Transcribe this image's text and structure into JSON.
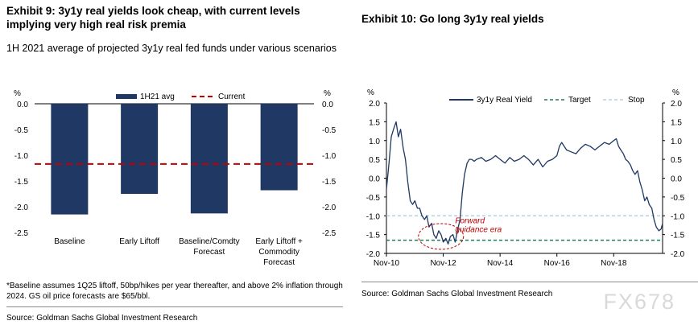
{
  "left": {
    "title": "Exhibit 9: 3y1y real yields look cheap, with current levels implying very high real risk premia",
    "subtitle": "1H 2021 average of projected 3y1y real fed funds under various scenarios",
    "footnote": "*Baseline assumes 1Q25 liftoff, 50bp/hikes per year thereafter, and above 2% inflation through 2024. GS oil price forecasts are $65/bbl.",
    "source": "Source: Goldman Sachs Global Investment Research"
  },
  "right": {
    "title": "Exhibit 10: Go long 3y1y real yields",
    "source": "Source: Goldman Sachs Global Investment Research",
    "annotation": [
      "Forward",
      "guidance era"
    ]
  },
  "watermark": "FX678",
  "colors": {
    "navy": "#1f3864",
    "red": "#c00000",
    "green": "#1e7b58",
    "lightblue": "#b4d2e6"
  },
  "chart_data": [
    {
      "type": "bar",
      "title": "Exhibit 9: 3y1y real yields look cheap, with current levels implying very high real risk premia",
      "categories": [
        "Baseline",
        "Early Liftoff",
        "Baseline/Comdty Forecast",
        "Early Liftoff + Commodity Forecast"
      ],
      "category_lines": [
        [
          "Baseline"
        ],
        [
          "Early Liftoff"
        ],
        [
          "Baseline/Comdty",
          "Forecast"
        ],
        [
          "Early Liftoff +",
          "Commodity",
          "Forecast"
        ]
      ],
      "series": [
        {
          "name": "1H21 avg",
          "values": [
            -2.15,
            -1.75,
            -2.13,
            -1.68
          ]
        }
      ],
      "reference_line": {
        "name": "Current",
        "value": -1.17
      },
      "ylabel_left": "%",
      "ylabel_right": "%",
      "ylim": [
        -2.5,
        0.0
      ],
      "yticks": [
        "0.0",
        "-0.5",
        "-1.0",
        "-1.5",
        "-2.0",
        "-2.5"
      ],
      "legend": "top"
    },
    {
      "type": "line",
      "title": "Exhibit 10: Go long 3y1y real yields",
      "x_ticks": [
        "Nov-10",
        "Nov-12",
        "Nov-14",
        "Nov-16",
        "Nov-18"
      ],
      "x_range": [
        2010.83,
        2020.55
      ],
      "ylabel_left": "%",
      "ylabel_right": "%",
      "ylim": [
        -2.0,
        2.0
      ],
      "yticks": [
        "2.0",
        "1.5",
        "1.0",
        "0.5",
        "0.0",
        "-0.5",
        "-1.0",
        "-1.5",
        "-2.0"
      ],
      "series": [
        {
          "name": "3y1y Real Yield",
          "x": [
            2010.83,
            2010.92,
            2011.0,
            2011.08,
            2011.17,
            2011.25,
            2011.33,
            2011.42,
            2011.5,
            2011.58,
            2011.67,
            2011.75,
            2011.83,
            2011.92,
            2012.0,
            2012.08,
            2012.17,
            2012.25,
            2012.33,
            2012.42,
            2012.5,
            2012.58,
            2012.67,
            2012.75,
            2012.83,
            2012.92,
            2013.0,
            2013.08,
            2013.17,
            2013.25,
            2013.33,
            2013.42,
            2013.5,
            2013.58,
            2013.67,
            2013.75,
            2013.83,
            2013.92,
            2014.0,
            2014.17,
            2014.33,
            2014.5,
            2014.67,
            2014.83,
            2015.0,
            2015.17,
            2015.33,
            2015.5,
            2015.67,
            2015.83,
            2016.0,
            2016.17,
            2016.33,
            2016.5,
            2016.67,
            2016.83,
            2016.92,
            2017.0,
            2017.17,
            2017.33,
            2017.5,
            2017.67,
            2017.83,
            2018.0,
            2018.17,
            2018.33,
            2018.5,
            2018.67,
            2018.83,
            2018.92,
            2019.0,
            2019.08,
            2019.17,
            2019.25,
            2019.33,
            2019.42,
            2019.5,
            2019.58,
            2019.67,
            2019.75,
            2019.83,
            2019.92,
            2020.0,
            2020.08,
            2020.17,
            2020.25,
            2020.33,
            2020.42,
            2020.5,
            2020.55
          ],
          "y": [
            -0.3,
            0.4,
            1.1,
            1.3,
            1.5,
            1.1,
            1.3,
            0.8,
            0.5,
            -0.1,
            -0.6,
            -0.7,
            -0.6,
            -0.8,
            -0.8,
            -1.0,
            -1.1,
            -1.0,
            -1.3,
            -1.2,
            -1.5,
            -1.6,
            -1.4,
            -1.5,
            -1.7,
            -1.6,
            -1.75,
            -1.55,
            -1.5,
            -1.7,
            -1.4,
            -1.1,
            -0.4,
            0.1,
            0.4,
            0.5,
            0.5,
            0.45,
            0.5,
            0.55,
            0.45,
            0.5,
            0.6,
            0.5,
            0.4,
            0.55,
            0.45,
            0.5,
            0.6,
            0.5,
            0.35,
            0.5,
            0.3,
            0.45,
            0.5,
            0.6,
            0.85,
            0.95,
            0.75,
            0.7,
            0.65,
            0.8,
            0.9,
            0.85,
            0.75,
            0.85,
            0.95,
            0.9,
            1.0,
            1.05,
            0.85,
            0.75,
            0.65,
            0.5,
            0.45,
            0.35,
            0.2,
            0.1,
            0.2,
            -0.1,
            -0.3,
            -0.6,
            -0.5,
            -0.7,
            -0.8,
            -1.1,
            -1.3,
            -1.4,
            -1.35,
            -1.2
          ]
        }
      ],
      "reference_lines": [
        {
          "name": "Target",
          "value": -1.65,
          "style": "dashed"
        },
        {
          "name": "Stop",
          "value": -1.0,
          "style": "dashed"
        }
      ],
      "legend": "top"
    }
  ]
}
